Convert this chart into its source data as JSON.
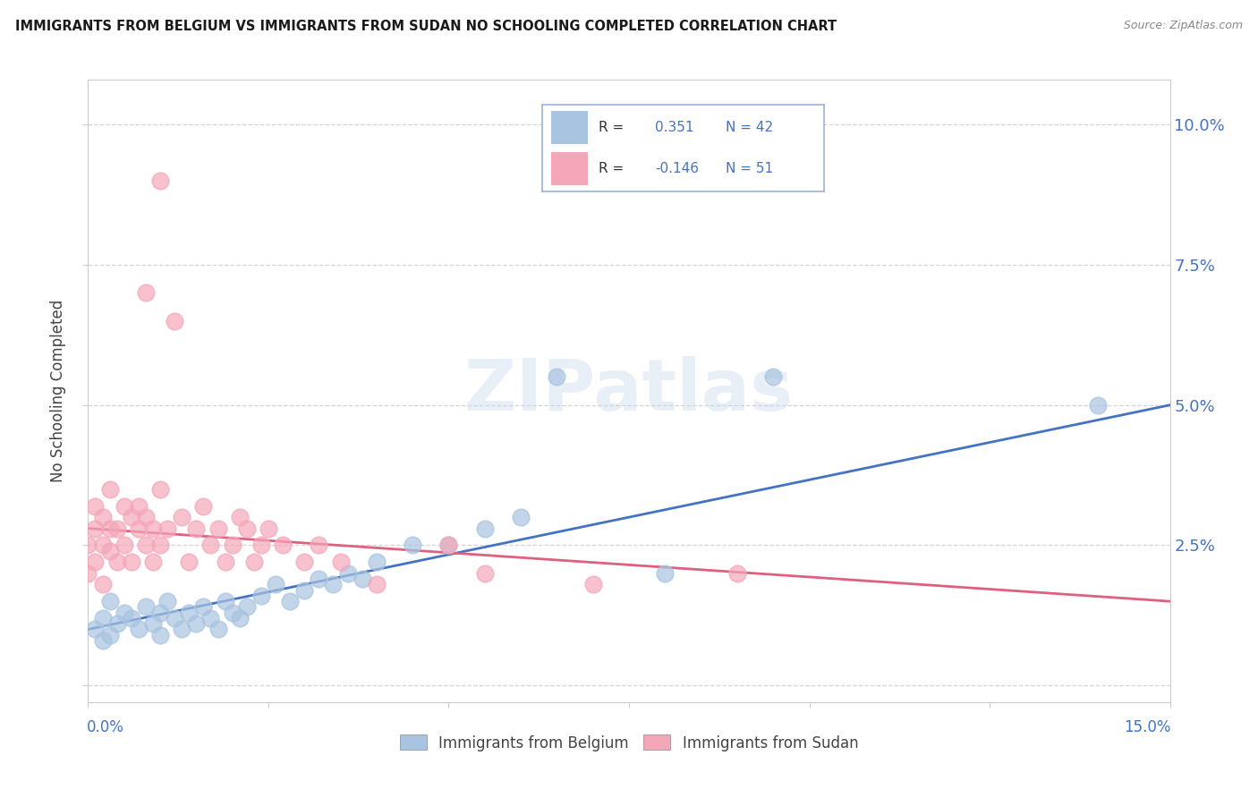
{
  "title": "IMMIGRANTS FROM BELGIUM VS IMMIGRANTS FROM SUDAN NO SCHOOLING COMPLETED CORRELATION CHART",
  "source": "Source: ZipAtlas.com",
  "ylabel": "No Schooling Completed",
  "xlim": [
    0.0,
    0.15
  ],
  "ylim": [
    -0.003,
    0.108
  ],
  "belgium_R": 0.351,
  "belgium_N": 42,
  "sudan_R": -0.146,
  "sudan_N": 51,
  "belgium_color": "#a8c4e0",
  "sudan_color": "#f4a7b9",
  "belgium_trend_color": "#4472c4",
  "sudan_trend_color": "#e06080",
  "watermark": "ZIPatlas",
  "legend_R_color": "#4472c4",
  "legend_text_color": "#4472c4",
  "background_color": "#ffffff",
  "grid_color": "#d0d0d0",
  "ytick_vals": [
    0.0,
    0.025,
    0.05,
    0.075,
    0.1
  ],
  "ytick_labels": [
    "",
    "2.5%",
    "5.0%",
    "7.5%",
    "10.0%"
  ],
  "belgium_x": [
    0.001,
    0.002,
    0.002,
    0.003,
    0.003,
    0.004,
    0.005,
    0.006,
    0.007,
    0.008,
    0.009,
    0.01,
    0.01,
    0.011,
    0.012,
    0.013,
    0.014,
    0.015,
    0.016,
    0.017,
    0.018,
    0.019,
    0.02,
    0.021,
    0.022,
    0.024,
    0.026,
    0.028,
    0.03,
    0.032,
    0.034,
    0.036,
    0.038,
    0.04,
    0.045,
    0.05,
    0.055,
    0.06,
    0.065,
    0.08,
    0.095,
    0.14
  ],
  "belgium_y": [
    0.01,
    0.012,
    0.008,
    0.015,
    0.009,
    0.011,
    0.013,
    0.012,
    0.01,
    0.014,
    0.011,
    0.013,
    0.009,
    0.015,
    0.012,
    0.01,
    0.013,
    0.011,
    0.014,
    0.012,
    0.01,
    0.015,
    0.013,
    0.012,
    0.014,
    0.016,
    0.018,
    0.015,
    0.017,
    0.019,
    0.018,
    0.02,
    0.019,
    0.022,
    0.025,
    0.025,
    0.028,
    0.03,
    0.055,
    0.02,
    0.055,
    0.05
  ],
  "sudan_x": [
    0.0,
    0.0,
    0.001,
    0.001,
    0.001,
    0.002,
    0.002,
    0.002,
    0.003,
    0.003,
    0.003,
    0.004,
    0.004,
    0.005,
    0.005,
    0.006,
    0.006,
    0.007,
    0.007,
    0.008,
    0.008,
    0.009,
    0.009,
    0.01,
    0.01,
    0.011,
    0.012,
    0.013,
    0.014,
    0.015,
    0.016,
    0.017,
    0.018,
    0.019,
    0.02,
    0.021,
    0.022,
    0.023,
    0.024,
    0.025,
    0.027,
    0.03,
    0.032,
    0.035,
    0.04,
    0.05,
    0.055,
    0.07,
    0.09,
    0.01,
    0.008
  ],
  "sudan_y": [
    0.025,
    0.02,
    0.028,
    0.022,
    0.032,
    0.025,
    0.03,
    0.018,
    0.024,
    0.028,
    0.035,
    0.022,
    0.028,
    0.032,
    0.025,
    0.03,
    0.022,
    0.028,
    0.032,
    0.025,
    0.03,
    0.028,
    0.022,
    0.035,
    0.025,
    0.028,
    0.065,
    0.03,
    0.022,
    0.028,
    0.032,
    0.025,
    0.028,
    0.022,
    0.025,
    0.03,
    0.028,
    0.022,
    0.025,
    0.028,
    0.025,
    0.022,
    0.025,
    0.022,
    0.018,
    0.025,
    0.02,
    0.018,
    0.02,
    0.09,
    0.07
  ],
  "bel_trend_x0": 0.0,
  "bel_trend_y0": 0.01,
  "bel_trend_x1": 0.15,
  "bel_trend_y1": 0.05,
  "sud_trend_x0": 0.0,
  "sud_trend_y0": 0.028,
  "sud_trend_x1": 0.15,
  "sud_trend_y1": 0.015
}
